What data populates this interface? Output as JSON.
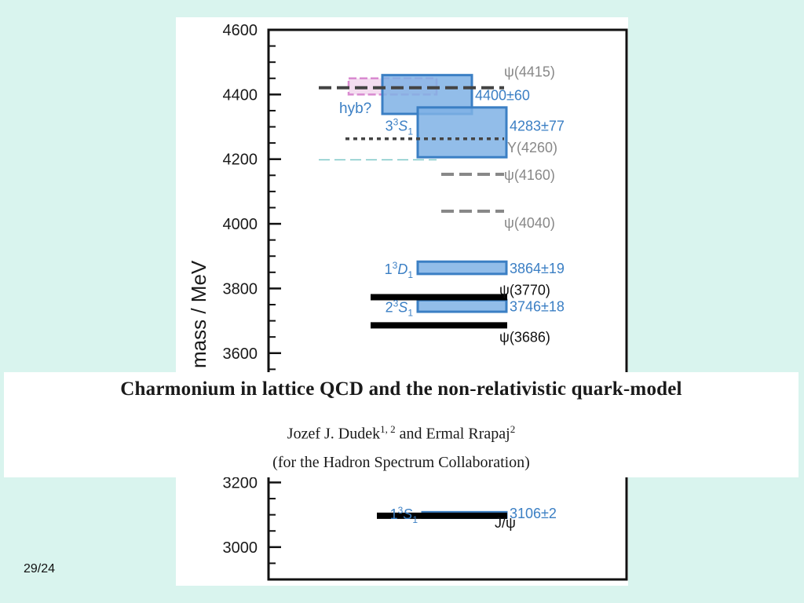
{
  "slide": {
    "page_number": "29/24",
    "paper": {
      "title": "Charmonium in lattice QCD and the non-relativistic quark-model",
      "author1": "Jozef J. Dudek",
      "author1_affil": "1, 2",
      "and_word": " and ",
      "author2": "Ermal Rrapaj",
      "author2_affil": "2",
      "collaboration": "(for the Hadron Spectrum Collaboration)"
    }
  },
  "chart_data": {
    "type": "level-spectrum",
    "ylabel": "mass / MeV",
    "ylim": [
      2900,
      4600
    ],
    "yticks": [
      3000,
      3200,
      3600,
      3800,
      4000,
      4200,
      4400,
      4600
    ],
    "colors": {
      "lattice_fill": "#7fb2e5",
      "lattice_edge": "#3b7fc4",
      "lattice_text": "#3b7fc4",
      "experiment_gray": "#888888",
      "experiment_dark": "#444444",
      "experiment_solid": "#000000",
      "hybrid": "#d98ad0",
      "cyan_dash": "#7ec8c8"
    },
    "lattice_states": [
      {
        "state_label": "",
        "value_label": "4400±60",
        "mass": 4400,
        "err": 60,
        "x_span": [
          0.34,
          0.64
        ],
        "label_note": "",
        "icon": ""
      },
      {
        "state_label": "3",
        "state_sup": "3",
        "state_sym": "S",
        "state_sub": "1",
        "value_label": "4283±77",
        "mass": 4283,
        "err": 77,
        "x_span": [
          0.5,
          0.78
        ]
      },
      {
        "state_label": "1",
        "state_sup": "3",
        "state_sym": "D",
        "state_sub": "1",
        "value_label": "3864±19",
        "mass": 3864,
        "err": 19,
        "x_span": [
          0.5,
          0.78
        ]
      },
      {
        "state_label": "2",
        "state_sup": "3",
        "state_sym": "S",
        "state_sub": "1",
        "value_label": "3746±18",
        "mass": 3746,
        "err": 18,
        "x_span": [
          0.5,
          0.78
        ]
      },
      {
        "state_label": "1",
        "state_sup": "3",
        "state_sym": "S",
        "state_sub": "1",
        "value_label": "3106±2",
        "mass": 3106,
        "err": 2,
        "x_span": [
          0.5,
          0.78
        ]
      }
    ],
    "hybrid": {
      "label": "hyb?",
      "mass": 4425,
      "err": 25
    },
    "experiments": [
      {
        "label": "ψ(4415)",
        "mass": 4421,
        "style": "dashed-dark"
      },
      {
        "label": "Υ(4260)",
        "mass": 4263,
        "style": "dotted"
      },
      {
        "label": "ψ(4160)",
        "mass": 4153,
        "style": "dashed"
      },
      {
        "label": "ψ(4040)",
        "mass": 4039,
        "style": "dashed"
      },
      {
        "label": "ψ(3770)",
        "mass": 3773,
        "style": "solid"
      },
      {
        "label": "ψ(3686)",
        "mass": 3686,
        "style": "solid"
      },
      {
        "label": "J/ψ",
        "mass": 3097,
        "style": "solid"
      }
    ]
  }
}
